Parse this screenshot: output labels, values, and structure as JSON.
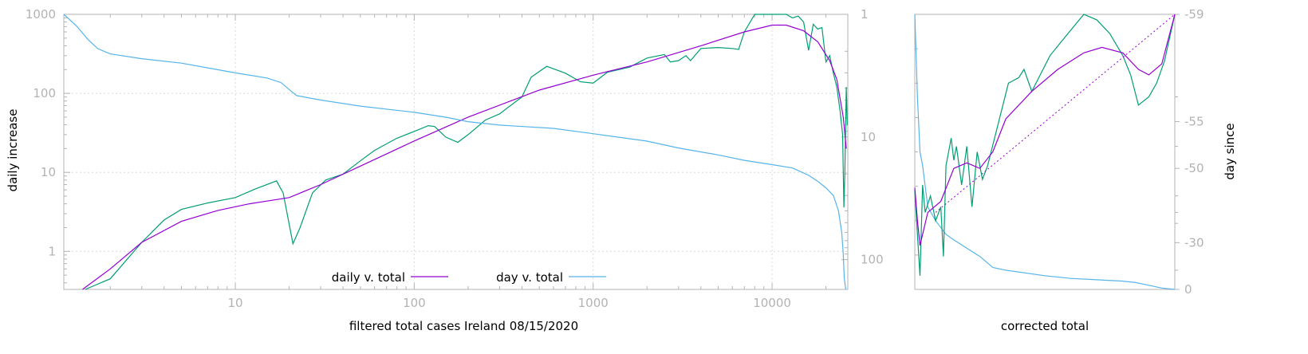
{
  "colors": {
    "axis": "#b3b3b3",
    "grid": "#d9d9d9",
    "daily_raw": "#009e73",
    "daily_smooth": "#9400d3",
    "day": "#56b4e9"
  },
  "chart_data": [
    {
      "type": "line",
      "title": "",
      "xlabel": "filtered total cases Ireland 08/15/2020",
      "ylabel": "daily increase",
      "x_scale": "log",
      "y_scale": "log",
      "grid": true,
      "xlim": [
        1.1,
        26500
      ],
      "ylim": [
        0.33,
        1000
      ],
      "y2lim": [
        1,
        175
      ],
      "y2_scale": "log",
      "y2_reversed": true,
      "x_ticks": [
        "10",
        "100",
        "1000",
        "10000"
      ],
      "y_ticks": [
        "1",
        "10",
        "100",
        "1000"
      ],
      "y2_ticks": [
        "1",
        "10",
        "100"
      ],
      "legend_position": "bottom-center",
      "series": [
        {
          "name": "",
          "role": "daily_raw",
          "axis": "left",
          "points": [
            [
              1.45,
              0.33
            ],
            [
              2,
              0.45
            ],
            [
              3,
              1.3
            ],
            [
              4,
              2.5
            ],
            [
              5,
              3.4
            ],
            [
              7,
              4.1
            ],
            [
              10,
              4.8
            ],
            [
              13,
              6.2
            ],
            [
              17,
              7.8
            ],
            [
              18.5,
              5.5
            ],
            [
              21,
              1.25
            ],
            [
              23,
              2.0
            ],
            [
              27,
              5.5
            ],
            [
              32,
              8.0
            ],
            [
              40,
              9.5
            ],
            [
              50,
              14
            ],
            [
              60,
              19
            ],
            [
              80,
              27
            ],
            [
              100,
              33
            ],
            [
              120,
              39
            ],
            [
              130,
              38
            ],
            [
              150,
              28
            ],
            [
              175,
              24
            ],
            [
              200,
              30
            ],
            [
              250,
              46
            ],
            [
              300,
              55
            ],
            [
              400,
              90
            ],
            [
              450,
              160
            ],
            [
              550,
              220
            ],
            [
              700,
              180
            ],
            [
              850,
              140
            ],
            [
              1000,
              135
            ],
            [
              1200,
              185
            ],
            [
              1600,
              215
            ],
            [
              2000,
              280
            ],
            [
              2500,
              310
            ],
            [
              2700,
              250
            ],
            [
              3000,
              260
            ],
            [
              3300,
              300
            ],
            [
              3500,
              260
            ],
            [
              4000,
              370
            ],
            [
              5000,
              380
            ],
            [
              6000,
              370
            ],
            [
              6500,
              360
            ],
            [
              7000,
              600
            ],
            [
              8000,
              1050
            ],
            [
              9000,
              1050
            ],
            [
              10000,
              1000
            ],
            [
              11000,
              1050
            ],
            [
              12000,
              1050
            ],
            [
              13000,
              900
            ],
            [
              14000,
              950
            ],
            [
              15000,
              800
            ],
            [
              16000,
              350
            ],
            [
              17000,
              750
            ],
            [
              18000,
              650
            ],
            [
              19000,
              680
            ],
            [
              20000,
              250
            ],
            [
              21000,
              300
            ],
            [
              22000,
              180
            ],
            [
              23000,
              120
            ],
            [
              24000,
              60
            ],
            [
              24800,
              30
            ],
            [
              25200,
              3.6
            ],
            [
              25500,
              10
            ],
            [
              26000,
              120
            ],
            [
              26300,
              40
            ]
          ]
        },
        {
          "name": "daily v. total",
          "role": "daily_smooth",
          "axis": "left",
          "points": [
            [
              1.4,
              0.33
            ],
            [
              2,
              0.6
            ],
            [
              3,
              1.3
            ],
            [
              5,
              2.4
            ],
            [
              8,
              3.3
            ],
            [
              12,
              4.0
            ],
            [
              20,
              4.8
            ],
            [
              30,
              7.0
            ],
            [
              50,
              12
            ],
            [
              100,
              25
            ],
            [
              200,
              50
            ],
            [
              500,
              110
            ],
            [
              1000,
              170
            ],
            [
              2000,
              250
            ],
            [
              4000,
              400
            ],
            [
              7000,
              600
            ],
            [
              10000,
              730
            ],
            [
              12000,
              730
            ],
            [
              15000,
              620
            ],
            [
              18000,
              450
            ],
            [
              21000,
              260
            ],
            [
              23000,
              150
            ],
            [
              25000,
              50
            ],
            [
              26000,
              20
            ]
          ]
        },
        {
          "name": "day v. total",
          "role": "day",
          "axis": "right",
          "points": [
            [
              1.1,
              1.0
            ],
            [
              1.3,
              1.25
            ],
            [
              1.5,
              1.6
            ],
            [
              1.7,
              1.9
            ],
            [
              2,
              2.1
            ],
            [
              3,
              2.3
            ],
            [
              5,
              2.5
            ],
            [
              10,
              3.0
            ],
            [
              15,
              3.3
            ],
            [
              18,
              3.6
            ],
            [
              20,
              4.1
            ],
            [
              22,
              4.6
            ],
            [
              30,
              5.0
            ],
            [
              50,
              5.6
            ],
            [
              100,
              6.3
            ],
            [
              150,
              6.9
            ],
            [
              200,
              7.5
            ],
            [
              300,
              8.0
            ],
            [
              600,
              8.5
            ],
            [
              1000,
              9.4
            ],
            [
              2000,
              10.8
            ],
            [
              3000,
              12.3
            ],
            [
              5000,
              14.0
            ],
            [
              7000,
              15.5
            ],
            [
              10000,
              16.8
            ],
            [
              13000,
              17.9
            ],
            [
              16000,
              20.5
            ],
            [
              18000,
              23.0
            ],
            [
              20000,
              26.0
            ],
            [
              22000,
              30.0
            ],
            [
              23500,
              40.0
            ],
            [
              24500,
              60.0
            ],
            [
              25000,
              90.0
            ],
            [
              25300,
              140.0
            ],
            [
              25800,
              175.0
            ]
          ]
        }
      ]
    },
    {
      "type": "line",
      "title": "",
      "xlabel": "corrected total",
      "y2label": "day since",
      "grid": false,
      "xlim": [
        0,
        1
      ],
      "ylim": [
        0,
        1
      ],
      "y2_ticks": [
        "-59",
        "-55",
        "-50",
        "-30",
        "0"
      ],
      "series": [
        {
          "name": "",
          "role": "day",
          "axis": "right",
          "points": [
            [
              0.0,
              1.0
            ],
            [
              0.01,
              0.7
            ],
            [
              0.02,
              0.5
            ],
            [
              0.03,
              0.45
            ],
            [
              0.05,
              0.3
            ],
            [
              0.08,
              0.25
            ],
            [
              0.12,
              0.2
            ],
            [
              0.15,
              0.18
            ],
            [
              0.2,
              0.15
            ],
            [
              0.25,
              0.12
            ],
            [
              0.3,
              0.08
            ],
            [
              0.35,
              0.07
            ],
            [
              0.5,
              0.05
            ],
            [
              0.6,
              0.04
            ],
            [
              0.7,
              0.035
            ],
            [
              0.8,
              0.03
            ],
            [
              0.85,
              0.025
            ],
            [
              0.9,
              0.015
            ],
            [
              0.95,
              0.005
            ],
            [
              1.0,
              0.0
            ]
          ]
        },
        {
          "name": "",
          "role": "daily_raw",
          "axis": "left",
          "points": [
            [
              0.0,
              0.36
            ],
            [
              0.01,
              0.2
            ],
            [
              0.02,
              0.05
            ],
            [
              0.03,
              0.38
            ],
            [
              0.04,
              0.28
            ],
            [
              0.06,
              0.34
            ],
            [
              0.08,
              0.25
            ],
            [
              0.1,
              0.3
            ],
            [
              0.11,
              0.12
            ],
            [
              0.12,
              0.45
            ],
            [
              0.13,
              0.5
            ],
            [
              0.14,
              0.55
            ],
            [
              0.15,
              0.47
            ],
            [
              0.16,
              0.52
            ],
            [
              0.18,
              0.38
            ],
            [
              0.2,
              0.52
            ],
            [
              0.22,
              0.3
            ],
            [
              0.24,
              0.5
            ],
            [
              0.26,
              0.4
            ],
            [
              0.28,
              0.45
            ],
            [
              0.36,
              0.75
            ],
            [
              0.4,
              0.77
            ],
            [
              0.42,
              0.8
            ],
            [
              0.45,
              0.72
            ],
            [
              0.52,
              0.85
            ],
            [
              0.58,
              0.92
            ],
            [
              0.65,
              1.0
            ],
            [
              0.7,
              0.98
            ],
            [
              0.75,
              0.93
            ],
            [
              0.8,
              0.85
            ],
            [
              0.83,
              0.78
            ],
            [
              0.86,
              0.67
            ],
            [
              0.9,
              0.7
            ],
            [
              0.93,
              0.75
            ],
            [
              0.96,
              0.83
            ],
            [
              1.0,
              1.0
            ]
          ]
        },
        {
          "name": "",
          "role": "daily_smooth",
          "axis": "left",
          "points": [
            [
              0.0,
              0.37
            ],
            [
              0.01,
              0.25
            ],
            [
              0.02,
              0.16
            ],
            [
              0.05,
              0.28
            ],
            [
              0.1,
              0.32
            ],
            [
              0.15,
              0.44
            ],
            [
              0.2,
              0.46
            ],
            [
              0.25,
              0.44
            ],
            [
              0.3,
              0.5
            ],
            [
              0.35,
              0.62
            ],
            [
              0.45,
              0.72
            ],
            [
              0.55,
              0.8
            ],
            [
              0.65,
              0.86
            ],
            [
              0.72,
              0.88
            ],
            [
              0.8,
              0.86
            ],
            [
              0.86,
              0.8
            ],
            [
              0.9,
              0.78
            ],
            [
              0.95,
              0.82
            ],
            [
              1.0,
              1.0
            ]
          ]
        },
        {
          "name": "",
          "role": "diagonal",
          "axis": "left",
          "points": [
            [
              0.08,
              0.28
            ],
            [
              1.0,
              1.0
            ]
          ]
        }
      ]
    }
  ]
}
